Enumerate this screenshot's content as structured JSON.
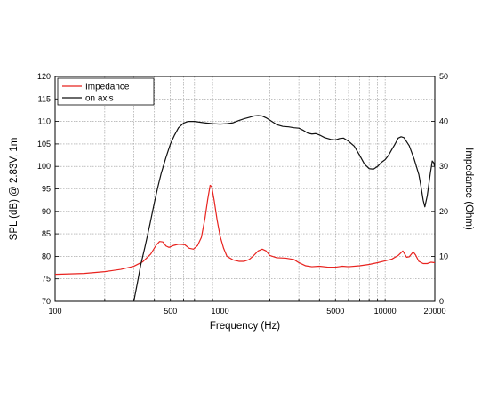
{
  "chart_data": {
    "type": "line",
    "xlabel": "Frequency (Hz)",
    "ylabel_left": "SPL (dB) @ 2.83V, 1m",
    "ylabel_right": "Impedance (Ohm)",
    "x_scale": "log",
    "xlim": [
      100,
      20000
    ],
    "ylim_left": [
      70,
      120
    ],
    "ylim_right": [
      0,
      50
    ],
    "x_ticks": [
      {
        "value": 100,
        "label": "100"
      },
      {
        "value": 500,
        "label": "500"
      },
      {
        "value": 1000,
        "label": "1000"
      },
      {
        "value": 5000,
        "label": "5000"
      },
      {
        "value": 10000,
        "label": "10000"
      },
      {
        "value": 20000,
        "label": "20000"
      }
    ],
    "y_left_ticks": [
      70,
      75,
      80,
      85,
      90,
      95,
      100,
      105,
      110,
      115,
      120
    ],
    "y_right_ticks": [
      0,
      10,
      20,
      30,
      40,
      50
    ],
    "grid": true,
    "legend_position": "top-left",
    "series": [
      {
        "name": "Impedance",
        "color": "#e8231f",
        "axis": "right",
        "points": [
          [
            100,
            6
          ],
          [
            150,
            6.2
          ],
          [
            200,
            6.6
          ],
          [
            250,
            7.1
          ],
          [
            300,
            7.8
          ],
          [
            340,
            8.8
          ],
          [
            380,
            10.5
          ],
          [
            410,
            12.5
          ],
          [
            430,
            13.3
          ],
          [
            450,
            13.2
          ],
          [
            470,
            12.3
          ],
          [
            490,
            12.0
          ],
          [
            520,
            12.4
          ],
          [
            560,
            12.7
          ],
          [
            610,
            12.6
          ],
          [
            650,
            11.8
          ],
          [
            690,
            11.6
          ],
          [
            730,
            12.4
          ],
          [
            770,
            14.2
          ],
          [
            810,
            18.5
          ],
          [
            840,
            22.5
          ],
          [
            870,
            25.8
          ],
          [
            890,
            25.5
          ],
          [
            920,
            22.5
          ],
          [
            960,
            18.0
          ],
          [
            1000,
            14.5
          ],
          [
            1050,
            11.8
          ],
          [
            1100,
            10.0
          ],
          [
            1200,
            9.2
          ],
          [
            1300,
            8.9
          ],
          [
            1400,
            8.9
          ],
          [
            1500,
            9.3
          ],
          [
            1600,
            10.2
          ],
          [
            1700,
            11.2
          ],
          [
            1800,
            11.6
          ],
          [
            1900,
            11.2
          ],
          [
            2000,
            10.2
          ],
          [
            2200,
            9.7
          ],
          [
            2500,
            9.6
          ],
          [
            2800,
            9.3
          ],
          [
            3000,
            8.6
          ],
          [
            3300,
            7.9
          ],
          [
            3600,
            7.7
          ],
          [
            4000,
            7.8
          ],
          [
            4500,
            7.6
          ],
          [
            5000,
            7.6
          ],
          [
            5500,
            7.8
          ],
          [
            6000,
            7.7
          ],
          [
            7000,
            7.9
          ],
          [
            8000,
            8.2
          ],
          [
            9000,
            8.6
          ],
          [
            10000,
            9.0
          ],
          [
            11000,
            9.4
          ],
          [
            12000,
            10.2
          ],
          [
            12800,
            11.2
          ],
          [
            13500,
            9.8
          ],
          [
            14000,
            9.9
          ],
          [
            14800,
            11.0
          ],
          [
            15300,
            10.3
          ],
          [
            16000,
            8.9
          ],
          [
            17000,
            8.4
          ],
          [
            18000,
            8.4
          ],
          [
            19000,
            8.7
          ],
          [
            20000,
            8.6
          ]
        ]
      },
      {
        "name": "on axis",
        "color": "#111111",
        "axis": "left",
        "points": [
          [
            300,
            70
          ],
          [
            315,
            74
          ],
          [
            330,
            78
          ],
          [
            350,
            82
          ],
          [
            375,
            87
          ],
          [
            400,
            92
          ],
          [
            420,
            95.5
          ],
          [
            440,
            98.5
          ],
          [
            470,
            102
          ],
          [
            500,
            105
          ],
          [
            530,
            107
          ],
          [
            560,
            108.6
          ],
          [
            600,
            109.6
          ],
          [
            640,
            110
          ],
          [
            700,
            110
          ],
          [
            800,
            109.7
          ],
          [
            900,
            109.5
          ],
          [
            1000,
            109.4
          ],
          [
            1100,
            109.5
          ],
          [
            1200,
            109.7
          ],
          [
            1300,
            110.2
          ],
          [
            1400,
            110.6
          ],
          [
            1500,
            110.9
          ],
          [
            1600,
            111.2
          ],
          [
            1700,
            111.3
          ],
          [
            1800,
            111.2
          ],
          [
            1900,
            110.8
          ],
          [
            2000,
            110.3
          ],
          [
            2200,
            109.3
          ],
          [
            2400,
            108.9
          ],
          [
            2600,
            108.8
          ],
          [
            2800,
            108.6
          ],
          [
            3000,
            108.5
          ],
          [
            3200,
            108.0
          ],
          [
            3400,
            107.4
          ],
          [
            3600,
            107.2
          ],
          [
            3800,
            107.3
          ],
          [
            4000,
            107.0
          ],
          [
            4300,
            106.4
          ],
          [
            4700,
            106.0
          ],
          [
            5000,
            105.9
          ],
          [
            5300,
            106.2
          ],
          [
            5600,
            106.3
          ],
          [
            6000,
            105.6
          ],
          [
            6500,
            104.5
          ],
          [
            7000,
            102.5
          ],
          [
            7500,
            100.5
          ],
          [
            8000,
            99.5
          ],
          [
            8500,
            99.4
          ],
          [
            9000,
            100.0
          ],
          [
            9500,
            100.9
          ],
          [
            10000,
            101.5
          ],
          [
            10500,
            102.5
          ],
          [
            11000,
            103.8
          ],
          [
            11500,
            105.0
          ],
          [
            12000,
            106.3
          ],
          [
            12500,
            106.6
          ],
          [
            13000,
            106.4
          ],
          [
            14000,
            104.6
          ],
          [
            15000,
            101.6
          ],
          [
            16000,
            98.2
          ],
          [
            16500,
            95.5
          ],
          [
            17000,
            92.5
          ],
          [
            17400,
            91.0
          ],
          [
            18000,
            93.5
          ],
          [
            18800,
            98.5
          ],
          [
            19300,
            101.2
          ],
          [
            19700,
            100.8
          ],
          [
            20000,
            99.8
          ]
        ]
      }
    ]
  }
}
